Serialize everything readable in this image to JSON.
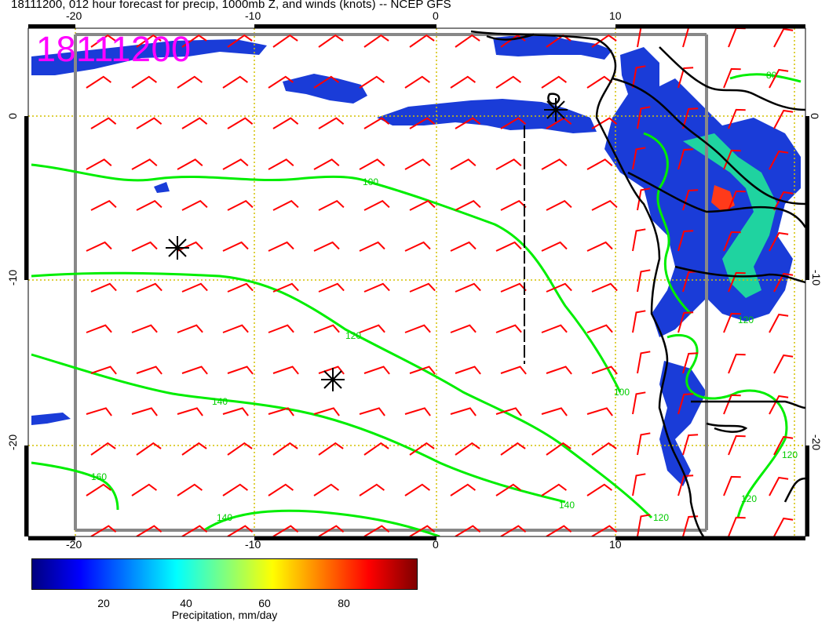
{
  "title": "18111200, 012 hour forecast for precip, 1000mb Z, and winds (knots) -- NCEP GFS",
  "stamp": "18111200",
  "lon_ticks": [
    "-20",
    "-10",
    "0",
    "10"
  ],
  "lat_ticks": [
    "0",
    "-10",
    "-20"
  ],
  "contour_labels": [
    "100",
    "120",
    "140",
    "160",
    "80"
  ],
  "colorbar": {
    "ticks": [
      "20",
      "40",
      "60",
      "80"
    ],
    "caption": "Precipitation, mm/day",
    "colors": [
      "#00007f",
      "#0000ff",
      "#007fff",
      "#00ffff",
      "#7fff7f",
      "#ffff00",
      "#ff7f00",
      "#ff0000",
      "#7f0000"
    ]
  },
  "colors": {
    "wind_barb": "#ff0000",
    "contour": "#00ee00",
    "graticule": "#d4c000",
    "stamp": "#ff00ff",
    "coastline": "#000000"
  }
}
